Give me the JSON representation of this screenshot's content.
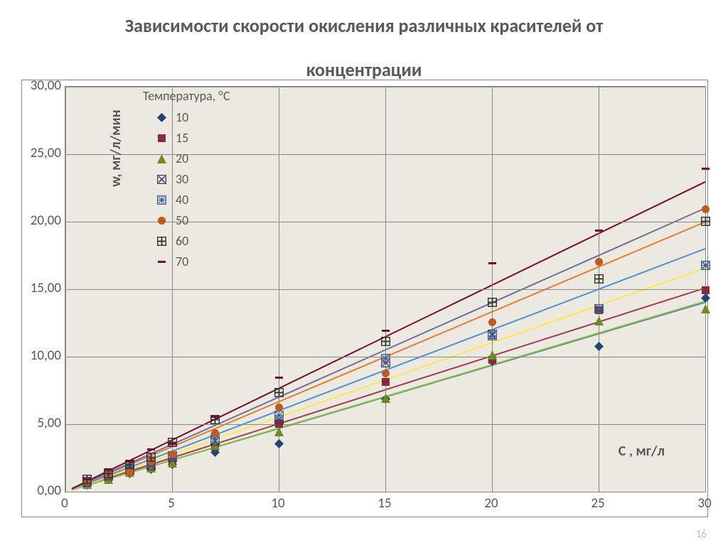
{
  "title_line1": "Зависимости скорости окисления различных красителей от",
  "title_line2": "концентрации",
  "page_number": "16",
  "chart": {
    "type": "scatter-with-lines",
    "background_color": "#ece9e0",
    "grid_color": "#888888",
    "outer_border_color": "#888888",
    "plot_border_color": "#888888",
    "text_color": "#595959",
    "y_axis": {
      "title": "w, мг/л/мин",
      "min": 0,
      "max": 30,
      "tick_step": 5,
      "tick_labels": [
        "0,00",
        "5,00",
        "10,00",
        "15,00",
        "20,00",
        "25,00",
        "30,00"
      ],
      "title_fontsize": 20,
      "label_fontsize": 19
    },
    "x_axis": {
      "title": "С , мг/л",
      "min": 0,
      "max": 30,
      "tick_positions": [
        0,
        5,
        10,
        15,
        20,
        25,
        30
      ],
      "tick_labels": [
        "0",
        "5",
        "10",
        "15",
        "20",
        "25",
        "30"
      ],
      "title_fontsize": 20,
      "label_fontsize": 19
    },
    "legend": {
      "title": "Температура, °С",
      "title_html": "Температура, <span class='sup'>о</span>С",
      "items": [
        {
          "label": "10",
          "marker": "diamond",
          "marker_color": "#214478",
          "line_color": "#3b74b9"
        },
        {
          "label": "15",
          "marker": "square",
          "marker_color": "#8b2942",
          "line_color": "#a43a54"
        },
        {
          "label": "20",
          "marker": "triangle",
          "marker_color": "#6b8e23",
          "line_color": "#8bbf3f"
        },
        {
          "label": "30",
          "marker": "x-box",
          "marker_color": "#3b3b5f",
          "line_color": "#ffe84d"
        },
        {
          "label": "40",
          "marker": "asterisk-box",
          "marker_color": "#3b5f9f",
          "line_color": "#4d8fd9"
        },
        {
          "label": "50",
          "marker": "circle",
          "marker_color": "#c05a1e",
          "line_color": "#e87d2f"
        },
        {
          "label": "60",
          "marker": "plus-box",
          "marker_color": "#333333",
          "line_color": "#6d6fa0"
        },
        {
          "label": "70",
          "marker": "dash",
          "marker_color": "#7a0d2b",
          "line_color": "#7a0d2b"
        }
      ],
      "fontsize": 18
    },
    "series_x": [
      1,
      2,
      3,
      4,
      5,
      7,
      10,
      15,
      20,
      25,
      30
    ],
    "series": [
      {
        "name": "10",
        "marker": "diamond",
        "marker_color": "#214478",
        "line_color": "#3b74b9",
        "y": [
          0.55,
          0.95,
          1.4,
          1.7,
          2.1,
          3.0,
          3.6,
          6.9,
          9.7,
          10.8,
          14.4
        ],
        "slope": 0.468
      },
      {
        "name": "15",
        "marker": "square",
        "marker_color": "#8b2942",
        "line_color": "#a43a54",
        "y": [
          0.7,
          1.1,
          1.55,
          1.85,
          2.3,
          3.4,
          5.1,
          8.2,
          9.8,
          13.5,
          15.0
        ],
        "slope": 0.503
      },
      {
        "name": "20",
        "marker": "triangle",
        "marker_color": "#6b8e23",
        "line_color": "#8bbf3f",
        "y": [
          0.6,
          1.0,
          1.5,
          1.8,
          2.2,
          3.5,
          4.5,
          7.0,
          10.2,
          12.7,
          13.6
        ],
        "slope": 0.47
      },
      {
        "name": "30",
        "marker": "x-box",
        "marker_color": "#3b3b5f",
        "line_color": "#ffe84d",
        "y": [
          0.75,
          1.25,
          1.65,
          2.0,
          2.6,
          3.8,
          5.4,
          9.6,
          11.7,
          13.6,
          16.8
        ],
        "slope": 0.552
      },
      {
        "name": "40",
        "marker": "asterisk-box",
        "marker_color": "#3b5f9f",
        "line_color": "#4d8fd9",
        "y": [
          0.8,
          1.3,
          1.9,
          2.2,
          2.7,
          4.0,
          5.7,
          9.9,
          11.6,
          13.6,
          16.8
        ],
        "slope": 0.6
      },
      {
        "name": "50",
        "marker": "circle",
        "marker_color": "#c05a1e",
        "line_color": "#e87d2f",
        "y": [
          0.8,
          1.3,
          1.5,
          2.3,
          2.8,
          4.4,
          6.3,
          8.8,
          12.6,
          17.1,
          21.0
        ],
        "slope": 0.666
      },
      {
        "name": "60",
        "marker": "plus-box",
        "marker_color": "#333333",
        "line_color": "#6d6fa0",
        "y": [
          0.95,
          1.4,
          2.1,
          2.6,
          3.7,
          5.4,
          7.4,
          11.2,
          14.1,
          15.8,
          20.1
        ],
        "slope": 0.7
      },
      {
        "name": "70",
        "marker": "dash",
        "marker_color": "#7a0d2b",
        "line_color": "#7a0d2b",
        "y": [
          1.0,
          1.7,
          2.3,
          3.2,
          3.6,
          5.6,
          8.5,
          12.0,
          17.0,
          19.4,
          24.0
        ],
        "slope": 0.765
      }
    ]
  }
}
